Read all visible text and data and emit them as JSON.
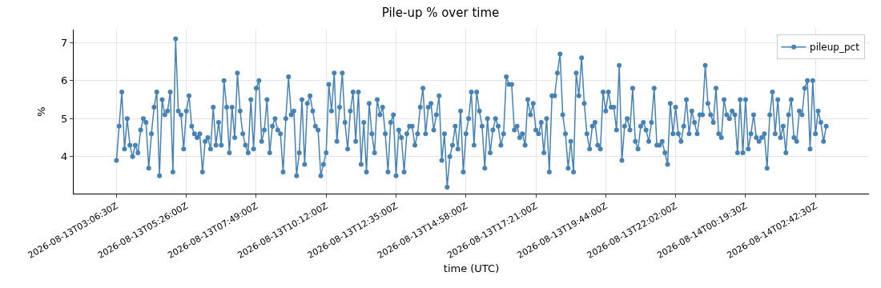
{
  "chart_data": {
    "type": "line",
    "title": "Pile-up % over time",
    "xlabel": "time (UTC)",
    "ylabel": "%",
    "categories": [
      "2026-08-13T03:06:30Z",
      null,
      null,
      null,
      null,
      null,
      null,
      null,
      null,
      null,
      null,
      null,
      null,
      null,
      null,
      null,
      null,
      null,
      null,
      null,
      null,
      null,
      null,
      null,
      null,
      null,
      "2026-08-13T05:26:00Z",
      null,
      null,
      null,
      null,
      null,
      null,
      null,
      null,
      null,
      null,
      null,
      null,
      null,
      null,
      null,
      null,
      null,
      null,
      null,
      null,
      null,
      null,
      null,
      null,
      null,
      "2026-08-13T07:49:00Z",
      null,
      null,
      null,
      null,
      null,
      null,
      null,
      null,
      null,
      null,
      null,
      null,
      null,
      null,
      null,
      null,
      null,
      null,
      null,
      null,
      null,
      null,
      null,
      null,
      null,
      "2026-08-13T10:12:00Z",
      null,
      null,
      null,
      null,
      null,
      null,
      null,
      null,
      null,
      null,
      null,
      null,
      null,
      null,
      null,
      null,
      null,
      null,
      null,
      null,
      null,
      null,
      null,
      null,
      null,
      "2026-08-13T12:35:00Z",
      null,
      null,
      null,
      null,
      null,
      null,
      null,
      null,
      null,
      null,
      null,
      null,
      null,
      null,
      null,
      null,
      null,
      null,
      null,
      null,
      null,
      null,
      null,
      null,
      null,
      "2026-08-13T14:58:00Z",
      null,
      null,
      null,
      null,
      null,
      null,
      null,
      null,
      null,
      null,
      null,
      null,
      null,
      null,
      null,
      null,
      null,
      null,
      null,
      null,
      null,
      null,
      null,
      null,
      null,
      "2026-08-13T17:21:00Z",
      null,
      null,
      null,
      null,
      null,
      null,
      null,
      null,
      null,
      null,
      null,
      null,
      null,
      null,
      null,
      null,
      null,
      null,
      null,
      null,
      null,
      null,
      null,
      null,
      null,
      "2026-08-13T19:44:00Z",
      null,
      null,
      null,
      null,
      null,
      null,
      null,
      null,
      null,
      null,
      null,
      null,
      null,
      null,
      null,
      null,
      null,
      null,
      null,
      null,
      null,
      null,
      null,
      null,
      null,
      "2026-08-13T22:02:00Z",
      null,
      null,
      null,
      null,
      null,
      null,
      null,
      null,
      null,
      null,
      null,
      null,
      null,
      null,
      null,
      null,
      null,
      null,
      null,
      null,
      null,
      null,
      null,
      null,
      null,
      "2026-08-14T00:19:30Z",
      null,
      null,
      null,
      null,
      null,
      null,
      null,
      null,
      null,
      null,
      null,
      null,
      null,
      null,
      null,
      null,
      null,
      null,
      null,
      null,
      null,
      null,
      null,
      null,
      null,
      "2026-08-14T02:42:30Z",
      null,
      null,
      null,
      null
    ],
    "series": [
      {
        "name": "pileup_pct",
        "color": "#4682b4",
        "values": [
          3.9,
          4.8,
          5.7,
          4.2,
          5.0,
          4.3,
          4.0,
          4.3,
          4.1,
          4.7,
          5.0,
          4.9,
          3.7,
          4.6,
          5.3,
          5.7,
          3.5,
          5.5,
          5.1,
          5.2,
          5.7,
          3.6,
          7.1,
          5.2,
          5.1,
          4.2,
          5.2,
          5.6,
          4.8,
          4.6,
          4.5,
          4.6,
          3.6,
          4.4,
          4.5,
          4.2,
          5.3,
          4.3,
          4.9,
          4.3,
          6.0,
          5.3,
          4.1,
          5.3,
          4.5,
          6.2,
          5.2,
          4.6,
          4.3,
          4.1,
          5.5,
          4.2,
          5.8,
          6.0,
          4.4,
          4.7,
          5.5,
          4.1,
          4.8,
          5.0,
          4.7,
          4.6,
          3.6,
          5.0,
          6.1,
          5.1,
          5.2,
          3.5,
          4.1,
          5.5,
          3.8,
          5.4,
          5.6,
          5.2,
          4.8,
          4.7,
          3.5,
          3.8,
          4.1,
          5.9,
          5.2,
          6.2,
          4.4,
          5.3,
          6.2,
          4.9,
          4.2,
          5.2,
          5.7,
          4.4,
          5.7,
          3.8,
          4.9,
          3.6,
          5.4,
          4.6,
          4.1,
          5.5,
          5.1,
          5.3,
          4.6,
          3.6,
          4.9,
          5.1,
          3.5,
          4.7,
          4.5,
          3.6,
          4.6,
          4.8,
          4.8,
          4.3,
          4.6,
          5.3,
          5.8,
          4.6,
          5.3,
          5.4,
          4.7,
          5.1,
          5.6,
          3.9,
          4.6,
          3.2,
          4.0,
          4.3,
          4.8,
          4.2,
          5.2,
          3.6,
          4.6,
          5.0,
          5.7,
          4.3,
          5.7,
          5.2,
          4.8,
          3.7,
          5.0,
          4.1,
          4.7,
          5.0,
          4.8,
          4.3,
          4.6,
          6.1,
          5.9,
          5.9,
          4.7,
          4.8,
          4.5,
          4.6,
          4.3,
          5.5,
          5.1,
          5.4,
          4.7,
          4.6,
          4.9,
          4.1,
          5.0,
          3.6,
          5.6,
          5.6,
          6.2,
          6.7,
          5.1,
          4.6,
          3.7,
          4.4,
          3.6,
          6.2,
          5.6,
          6.6,
          5.4,
          4.6,
          4.2,
          4.8,
          4.9,
          4.3,
          4.2,
          5.7,
          5.2,
          5.7,
          5.3,
          5.3,
          4.7,
          6.4,
          3.9,
          4.8,
          5.0,
          4.7,
          5.8,
          4.4,
          4.2,
          4.8,
          4.9,
          4.7,
          4.4,
          4.9,
          5.8,
          4.3,
          4.3,
          4.4,
          4.1,
          3.8,
          5.4,
          4.6,
          5.3,
          4.6,
          4.4,
          4.8,
          5.5,
          4.6,
          5.2,
          4.9,
          4.6,
          5.1,
          5.1,
          6.4,
          5.4,
          5.1,
          4.9,
          5.8,
          4.6,
          4.5,
          5.5,
          5.1,
          5.0,
          5.2,
          5.1,
          4.1,
          5.5,
          4.1,
          5.5,
          4.2,
          4.6,
          5.1,
          4.5,
          4.4,
          4.5,
          4.6,
          3.7,
          5.1,
          5.7,
          4.6,
          5.5,
          4.5,
          4.8,
          4.1,
          5.1,
          5.5,
          4.5,
          4.4,
          5.2,
          5.1,
          5.8,
          6.0,
          4.2,
          6.0,
          4.6,
          5.2,
          4.9,
          4.4,
          4.8
        ]
      }
    ],
    "ylim": [
      3.03,
      7.34
    ],
    "yticks": [
      4,
      5,
      6,
      7
    ],
    "grid": true,
    "legend": "top right",
    "marker": "circle",
    "line_style": "solid"
  }
}
